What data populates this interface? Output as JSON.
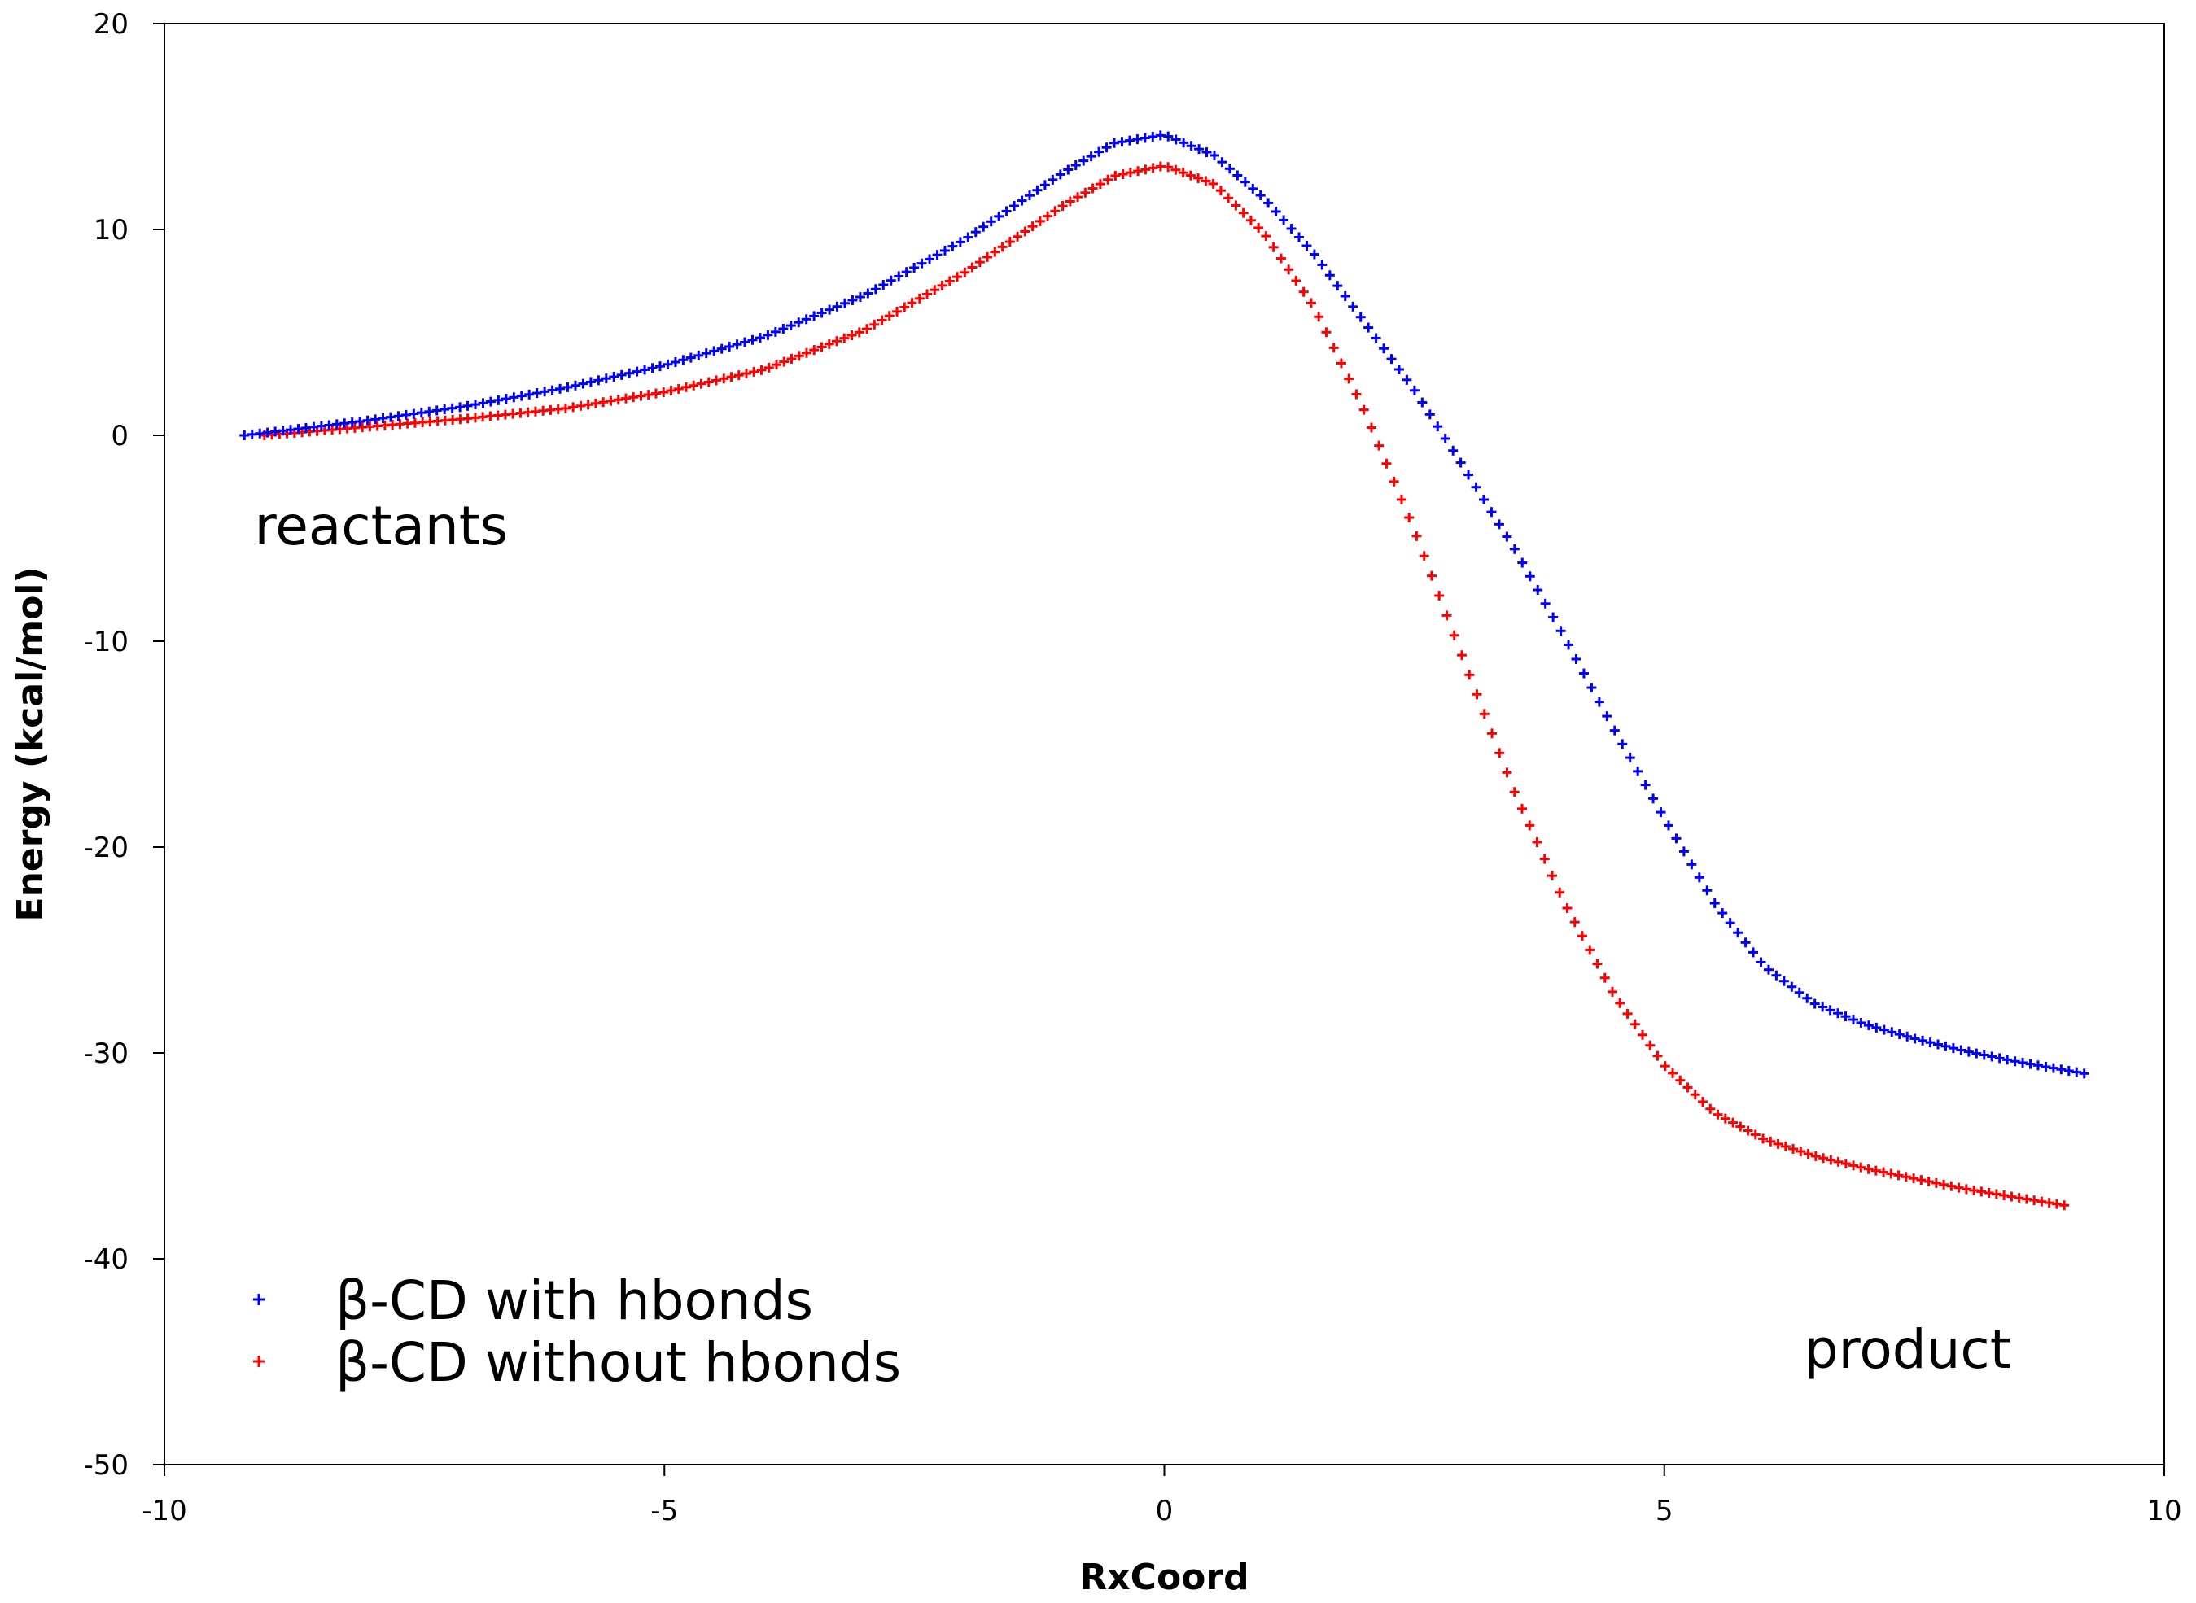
{
  "chart_data": {
    "type": "scatter",
    "title": "",
    "xlabel": "RxCoord",
    "ylabel": "Energy (kcal/mol)",
    "xlim": [
      -10,
      10
    ],
    "ylim": [
      -50,
      20
    ],
    "x_ticks": [
      -10,
      -5,
      0,
      5,
      10
    ],
    "y_ticks": [
      20,
      10,
      0,
      -10,
      -20,
      -30,
      -40,
      -50
    ],
    "x_tick_labels": [
      "-10",
      "-5",
      "0",
      "5",
      "10"
    ],
    "y_tick_labels": [
      "20",
      "10",
      "0",
      "-10",
      "-20",
      "-30",
      "-40",
      "-50"
    ],
    "grid": false,
    "legend_position": "bottom-left",
    "annotations": [
      {
        "id": "reactants",
        "text": "reactants",
        "x": -9.1,
        "y": -5.3
      },
      {
        "id": "product",
        "text": "product",
        "x": 6.4,
        "y": -45.3
      }
    ],
    "series": [
      {
        "name": "β-CD with hbonds",
        "color": "#0000ff",
        "marker": "plus",
        "x_start": -9.2,
        "x_end": 9.2,
        "n_points": 240,
        "anchors": [
          [
            -9.2,
            0.0
          ],
          [
            -8.0,
            0.7
          ],
          [
            -7.0,
            1.4
          ],
          [
            -6.0,
            2.3
          ],
          [
            -5.0,
            3.4
          ],
          [
            -4.0,
            4.8
          ],
          [
            -3.0,
            6.8
          ],
          [
            -2.0,
            9.5
          ],
          [
            -1.0,
            12.8
          ],
          [
            -0.5,
            14.2
          ],
          [
            0.0,
            14.6
          ],
          [
            0.5,
            13.6
          ],
          [
            1.0,
            11.5
          ],
          [
            1.5,
            8.8
          ],
          [
            2.0,
            5.5
          ],
          [
            2.5,
            2.2
          ],
          [
            3.0,
            -1.6
          ],
          [
            3.5,
            -5.5
          ],
          [
            4.0,
            -9.8
          ],
          [
            4.5,
            -14.3
          ],
          [
            5.0,
            -18.6
          ],
          [
            5.5,
            -22.7
          ],
          [
            6.0,
            -25.8
          ],
          [
            6.5,
            -27.6
          ],
          [
            7.0,
            -28.6
          ],
          [
            7.5,
            -29.3
          ],
          [
            8.0,
            -29.9
          ],
          [
            8.5,
            -30.4
          ],
          [
            9.2,
            -31.0
          ]
        ]
      },
      {
        "name": "β-CD without hbonds",
        "color": "#ff0000",
        "marker": "plus",
        "x_start": -9.0,
        "x_end": 9.0,
        "n_points": 240,
        "anchors": [
          [
            -9.0,
            0.0
          ],
          [
            -8.0,
            0.4
          ],
          [
            -7.0,
            0.8
          ],
          [
            -6.0,
            1.3
          ],
          [
            -5.0,
            2.1
          ],
          [
            -4.0,
            3.2
          ],
          [
            -3.0,
            5.1
          ],
          [
            -2.0,
            7.9
          ],
          [
            -1.0,
            11.2
          ],
          [
            -0.5,
            12.6
          ],
          [
            0.0,
            13.1
          ],
          [
            0.5,
            12.2
          ],
          [
            1.0,
            9.8
          ],
          [
            1.5,
            6.2
          ],
          [
            2.0,
            1.2
          ],
          [
            2.5,
            -4.6
          ],
          [
            3.0,
            -11.0
          ],
          [
            3.5,
            -17.3
          ],
          [
            4.0,
            -22.7
          ],
          [
            4.5,
            -27.2
          ],
          [
            5.0,
            -30.6
          ],
          [
            5.5,
            -32.9
          ],
          [
            6.0,
            -34.2
          ],
          [
            6.5,
            -35.0
          ],
          [
            7.0,
            -35.6
          ],
          [
            7.5,
            -36.1
          ],
          [
            8.0,
            -36.6
          ],
          [
            8.5,
            -37.0
          ],
          [
            9.0,
            -37.4
          ]
        ]
      }
    ]
  }
}
